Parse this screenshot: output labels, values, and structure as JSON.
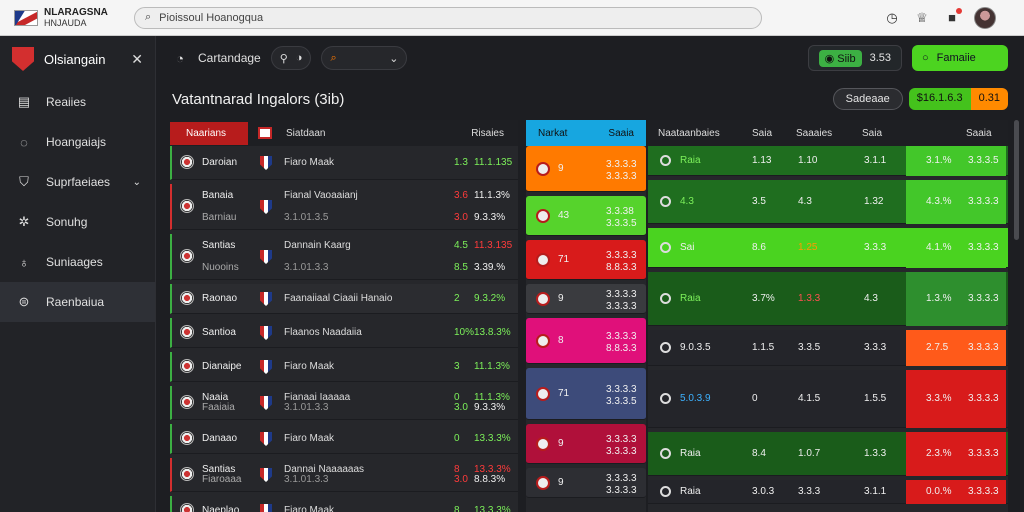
{
  "browser": {
    "brand_line1": "NLARAGSNA",
    "brand_line2": "HNJAUDA",
    "url": "Pioissoul Hoanogqua"
  },
  "sidebar": {
    "title": "Olsiangain",
    "items": [
      {
        "label": "Reaiies",
        "icon": "table-icon"
      },
      {
        "label": "Hoangaiajs",
        "icon": "clock-icon"
      },
      {
        "label": "Suprfaeiaes",
        "icon": "shield-icon",
        "caret": true
      },
      {
        "label": "Sonuhg",
        "icon": "gear-icon"
      },
      {
        "label": "Suniaages",
        "icon": "tag-icon"
      },
      {
        "label": "Raenbaiua",
        "icon": "wallet-icon",
        "active": true
      }
    ]
  },
  "toolbar": {
    "label": "Cartandage",
    "btn_a": "Siib",
    "btn_b": "3.53",
    "btn_green": "Famaiie"
  },
  "title": {
    "text": "Vatantnarad Ingalors (3ib)",
    "pill_grey": "Sadeaae",
    "pill_a": "$16.1.6.3",
    "pill_b": "0.31"
  },
  "left_panel": {
    "headers": [
      "Naarians",
      "Siatdaan",
      "Risaies"
    ],
    "rows": [
      {
        "team": "Daroian",
        "opp": "Fiaro Maak",
        "odd1": "1.3",
        "odd2": "11.1.135",
        "c1": "grn",
        "c2": "grn"
      },
      {
        "team": "Banaia",
        "sub": "Barniau",
        "opp": "Fianal Vaoaaianj",
        "sub2": "3.1.01.3.5",
        "odd1": "3.6",
        "odd2": "11.1.3%",
        "c1": "red",
        "c2": "wht",
        "odd3": "3.0",
        "odd4": "9.3.3%"
      },
      {
        "team": "Santias",
        "sub": "Nuooins",
        "opp": "Dannain Kaarg",
        "sub2": "3.1.01.3.3",
        "odd1": "4.5",
        "odd2": "11.3.135",
        "c1": "grn",
        "c2": "red",
        "odd3": "8.5",
        "odd4": "3.39.%"
      },
      {
        "team": "Raonao",
        "opp": "Faanaiiaal Ciaaii Hanaio",
        "odd1": "2",
        "odd2": "9.3.2%",
        "c1": "grn",
        "c2": "grn"
      },
      {
        "team": "Santioa",
        "opp": "Flaanos Naadaiia",
        "odd1": "10%",
        "odd2": "13.8.3%",
        "c1": "grn",
        "c2": "grn"
      },
      {
        "team": "Dianaipe",
        "opp": "Fiaro Maak",
        "odd1": "3",
        "odd2": "11.1.3%",
        "c1": "grn",
        "c2": "grn"
      },
      {
        "team": "Naaia",
        "sub": "Faaiaia",
        "opp": "Fianaai Iaaaaa",
        "sub2": "3.1.01.3.3",
        "odd1": "0",
        "odd2": "11.1.3%",
        "c1": "grn",
        "c2": "grn",
        "odd3": "3.0",
        "odd4": "9.3.3%"
      },
      {
        "team": "Danaao",
        "opp": "Fiaro Maak",
        "odd1": "0",
        "odd2": "13.3.3%",
        "c1": "grn",
        "c2": "grn"
      },
      {
        "team": "Santias",
        "sub": "Fiaroaaa",
        "opp": "Dannai Naaaaaas",
        "sub2": "3.1.01.3.3",
        "odd1": "8",
        "odd2": "13.3.3%",
        "c1": "red",
        "c2": "red",
        "odd3": "3.0",
        "odd4": "8.8.3%"
      },
      {
        "team": "Naeplao",
        "opp": "Fiaro Maak",
        "odd1": "8",
        "odd2": "13.3.3%",
        "c1": "grn",
        "c2": "grn"
      }
    ]
  },
  "mid_panel": {
    "headers": [
      "Narkat",
      "Saaia"
    ],
    "rows": [
      {
        "a": "9",
        "b": "3.3.3.3",
        "b2": "3.3.3.3",
        "color": "#ff7a00"
      },
      {
        "a": "43",
        "b": "3.3.38",
        "b2": "3.3.3.5",
        "color": "#56d32c"
      },
      {
        "a": "71",
        "b": "3.3.3.3",
        "b2": "8.8.3.3",
        "color": "#d81b1b"
      },
      {
        "a": "9",
        "b": "3.3.3.3",
        "b2": "3.3.3.3",
        "color": "#3a3b3f"
      },
      {
        "a": "8",
        "b": "3.3.3.3",
        "b2": "8.8.3.3",
        "color": "#e0107a"
      },
      {
        "a": "71",
        "b": "3.3.3.3",
        "b2": "3.3.3.5",
        "color": "#3d4b7a"
      },
      {
        "a": "9",
        "b": "3.3.3.3",
        "b2": "3.3.3.3",
        "color": "#b0103a"
      },
      {
        "a": "9",
        "b": "3.3.3.3",
        "b2": "3.3.3.3",
        "color": "#2d2e33"
      }
    ]
  },
  "right_panel": {
    "headers": [
      "Naataanbaies",
      "Saia",
      "Saaaies",
      "Saia",
      "Saaia"
    ],
    "rows": [
      {
        "name": "Raia",
        "v1": "1.13",
        "v2": "1.10",
        "v3": "3.1.1",
        "pct": "3.1.%",
        "last": "3.3.3.5",
        "bg": "#1f6e1f",
        "hl": "#43c72a",
        "nc": "grn"
      },
      {
        "name": "4.3",
        "v1": "3.5",
        "v2": "4.3",
        "v3": "1.32",
        "pct": "4.3.%",
        "last": "3.3.3.3",
        "bg": "#1f6e1f",
        "hl": "#43c72a",
        "nc": "grn"
      },
      {
        "name": "Sai",
        "v1": "8.6",
        "v2": "1.25",
        "v3": "3.3.3",
        "pct": "4.1.%",
        "last": "3.3.3.3",
        "bg": "#4ad320",
        "hl": "#4ad320",
        "nc": "wht"
      },
      {
        "name": "Raia",
        "v1": "3.7%",
        "v2": "1.3.3",
        "v3": "4.3",
        "pct": "1.3.%",
        "last": "3.3.3.3",
        "bg": "#1a5c1a",
        "hl": "#2e8f2e",
        "nc": "grn"
      },
      {
        "name": "9.0.3.5",
        "v1": "1.1.5",
        "v2": "3.3.5",
        "v3": "3.3.3",
        "pct": "2.7.5",
        "last": "3.3.3.3",
        "bg": "#24252a",
        "hl": "#ff5a1a",
        "nc": "wht"
      },
      {
        "name": "5.0.3.9",
        "v1": "0",
        "v2": "4.1.5",
        "v3": "1.5.5",
        "pct": "3.3.%",
        "last": "3.3.3.3",
        "bg": "#24252a",
        "hl": "#d81b1b",
        "nc": "blu"
      },
      {
        "name": "Raia",
        "v1": "8.4",
        "v2": "1.0.7",
        "v3": "1.3.3",
        "pct": "2.3.%",
        "last": "3.3.3.3",
        "bg": "#1a5c1a",
        "hl": "#d81b1b",
        "nc": "wht"
      },
      {
        "name": "Raia",
        "v1": "3.0.3",
        "v2": "3.3.3",
        "v3": "3.1.1",
        "pct": "0.0.%",
        "last": "3.3.3.3",
        "bg": "#24252a",
        "hl": "#d81b1b",
        "nc": "wht"
      }
    ]
  }
}
